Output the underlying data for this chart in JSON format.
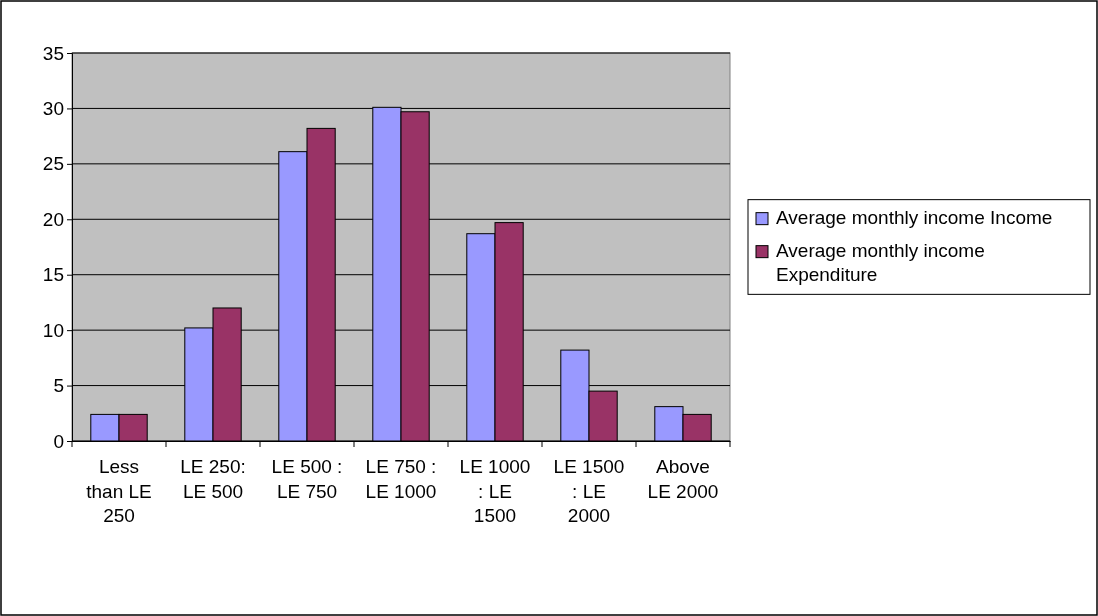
{
  "chart_data": {
    "type": "bar",
    "categories": [
      "Less than LE 250",
      "LE 250: LE 500",
      "LE 500 : LE 750",
      "LE 750 : LE 1000",
      "LE 1000 : LE 1500",
      "LE 1500 : LE 2000",
      "Above LE 2000"
    ],
    "series": [
      {
        "name": "Average monthly income Income",
        "color": "#9999ff",
        "values": [
          2.4,
          10.2,
          26.1,
          30.1,
          18.7,
          8.2,
          3.1
        ]
      },
      {
        "name": "Average monthly income Expenditure",
        "color": "#993366",
        "values": [
          2.4,
          12.0,
          28.2,
          29.7,
          19.7,
          4.5,
          2.4
        ]
      }
    ],
    "ylim": [
      0,
      35
    ],
    "yticks": [
      0,
      5,
      10,
      15,
      20,
      25,
      30,
      35
    ],
    "grid": "y",
    "legend": "right"
  }
}
